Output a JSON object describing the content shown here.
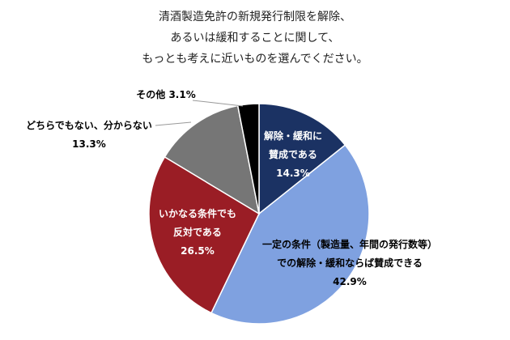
{
  "chart_data": {
    "type": "pie",
    "title_lines": [
      "清酒製造免許の新規発行制限を解除、",
      "あるいは緩和することに関して、",
      "もっとも考えに近いものを選んでください。"
    ],
    "start": "top",
    "direction": "clockwise",
    "slices": [
      {
        "label_lines": [
          "解除・緩和に",
          "賛成である"
        ],
        "value": 14.3,
        "value_label": "14.3%",
        "color": "#1b3263",
        "text_color": "#ffffff"
      },
      {
        "label_lines": [
          "一定の条件（製造量、年間の発行数等）",
          "での解除・緩和ならば賛成できる"
        ],
        "value": 42.9,
        "value_label": "42.9%",
        "color": "#7fa1e0",
        "text_color": "#000000"
      },
      {
        "label_lines": [
          "いかなる条件でも",
          "反対である"
        ],
        "value": 26.5,
        "value_label": "26.5%",
        "color": "#9a1d25",
        "text_color": "#ffffff"
      },
      {
        "label_lines": [
          "どちらでもない、分からない"
        ],
        "value": 13.3,
        "value_label": "13.3%",
        "color": "#767676",
        "text_color": "#000000"
      },
      {
        "label_lines": [
          "その他"
        ],
        "value": 3.1,
        "value_label": "3.1%",
        "color": "#000000",
        "text_color": "#000000"
      }
    ]
  }
}
